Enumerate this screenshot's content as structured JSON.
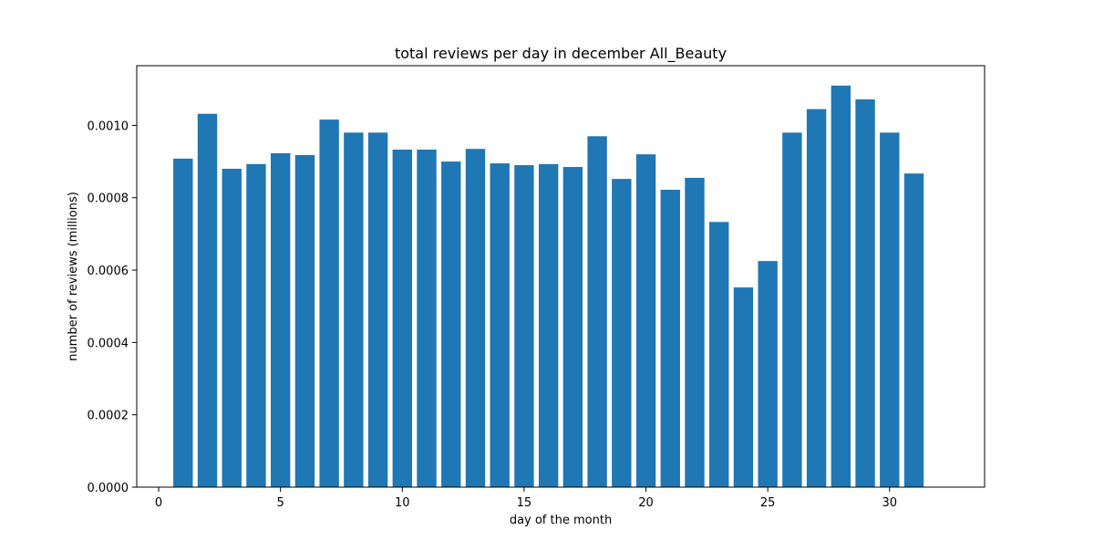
{
  "chart_data": {
    "type": "bar",
    "title": "total reviews per day in december All_Beauty",
    "xlabel": "day of the month",
    "ylabel": "number of reviews (millions)",
    "x": [
      1,
      2,
      3,
      4,
      5,
      6,
      7,
      8,
      9,
      10,
      11,
      12,
      13,
      14,
      15,
      16,
      17,
      18,
      19,
      20,
      21,
      22,
      23,
      24,
      25,
      26,
      27,
      28,
      29,
      30,
      31
    ],
    "values": [
      0.000908,
      0.001032,
      0.00088,
      0.000893,
      0.000923,
      0.000918,
      0.001016,
      0.00098,
      0.00098,
      0.000933,
      0.000933,
      0.0009,
      0.000935,
      0.000895,
      0.00089,
      0.000893,
      0.000885,
      0.00097,
      0.000852,
      0.00092,
      0.000822,
      0.000855,
      0.000733,
      0.000552,
      0.000625,
      0.00098,
      0.001045,
      0.00111,
      0.001072,
      0.00098,
      0.000867
    ],
    "xlim": [
      -0.9,
      33.9
    ],
    "ylim": [
      0,
      0.001165
    ],
    "xticks": [
      0,
      5,
      10,
      15,
      20,
      25,
      30
    ],
    "xtick_labels": [
      "0",
      "5",
      "10",
      "15",
      "20",
      "25",
      "30"
    ],
    "yticks": [
      0,
      0.0002,
      0.0004,
      0.0006,
      0.0008,
      0.001
    ],
    "ytick_labels": [
      "0.0000",
      "0.0002",
      "0.0004",
      "0.0006",
      "0.0008",
      "0.0010"
    ],
    "bar_color": "#1f77b4",
    "grid": false,
    "legend": "none"
  }
}
